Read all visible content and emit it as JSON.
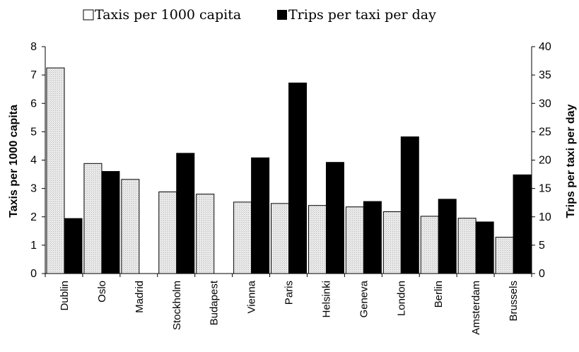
{
  "chart_data": {
    "type": "bar",
    "categories": [
      "Dublin",
      "Oslo",
      "Madrid",
      "Stockholm",
      "Budapest",
      "Vienna",
      "Paris",
      "Helsinki",
      "Geneva",
      "London",
      "Berlin",
      "Amsterdam",
      "Brussels"
    ],
    "series": [
      {
        "name": "Taxis per 1000 capita",
        "axis": "left",
        "color": "#e6e6e6",
        "values": [
          7.25,
          3.88,
          3.32,
          2.88,
          2.8,
          2.52,
          2.47,
          2.4,
          2.35,
          2.18,
          2.02,
          1.95,
          1.28
        ]
      },
      {
        "name": "Trips per taxi per day",
        "axis": "right",
        "color": "#000000",
        "values": [
          9.7,
          18.0,
          null,
          21.2,
          null,
          20.4,
          33.6,
          19.6,
          12.7,
          24.1,
          13.1,
          9.1,
          17.4
        ]
      }
    ],
    "ylabel": "Taxis per 1000 capita",
    "ylim": [
      0,
      8
    ],
    "y_ticks": [
      0,
      1,
      2,
      3,
      4,
      5,
      6,
      7,
      8
    ],
    "y2label": "Trips per taxi per day",
    "y2lim": [
      0,
      40
    ],
    "y2_ticks": [
      0,
      5,
      10,
      15,
      20,
      25,
      30,
      35,
      40
    ],
    "legend": [
      "Taxis per 1000 capita",
      "Trips per taxi per day"
    ],
    "legend_placement": "top",
    "grid": false
  }
}
